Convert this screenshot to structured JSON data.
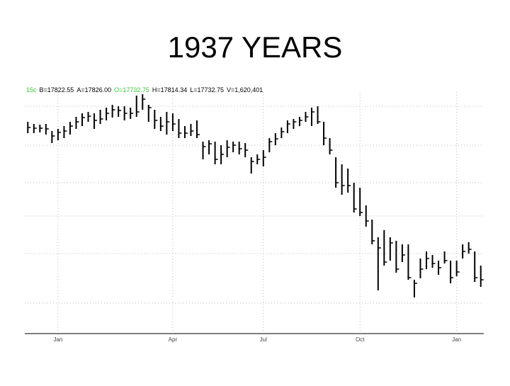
{
  "chart_data": {
    "type": "hlc",
    "title": "1937 YEARS",
    "info": [
      "15c",
      "B=17822.55",
      "A=17826.00",
      "O=17732.75",
      "H=17814.34",
      "L=17732.75",
      "V=1,620,401"
    ],
    "categories": [
      null,
      null,
      null,
      null,
      null,
      "Jan",
      null,
      null,
      null,
      null,
      null,
      null,
      null,
      null,
      null,
      null,
      null,
      null,
      null,
      null,
      null,
      null,
      null,
      null,
      "Apr",
      null,
      null,
      null,
      null,
      null,
      null,
      null,
      null,
      null,
      null,
      null,
      null,
      null,
      null,
      "Jul",
      null,
      null,
      null,
      null,
      null,
      null,
      null,
      null,
      null,
      null,
      null,
      null,
      null,
      null,
      null,
      "Oct",
      null,
      null,
      null,
      null,
      null,
      null,
      null,
      null,
      null,
      null,
      null,
      null,
      null,
      null,
      null,
      "Jan",
      null,
      null,
      null,
      null
    ],
    "high": [
      298,
      295,
      294,
      295,
      285,
      288,
      292,
      298,
      305,
      310,
      312,
      310,
      315,
      318,
      322,
      320,
      320,
      318,
      335,
      337,
      322,
      315,
      305,
      312,
      310,
      302,
      292,
      295,
      300,
      270,
      272,
      270,
      265,
      272,
      270,
      270,
      268,
      248,
      252,
      258,
      275,
      282,
      290,
      300,
      302,
      305,
      312,
      318,
      320,
      298,
      275,
      248,
      238,
      232,
      212,
      205,
      180,
      160,
      135,
      145,
      135,
      130,
      125,
      125,
      75,
      105,
      115,
      110,
      102,
      115,
      102,
      102,
      125,
      128,
      115,
      95
    ],
    "low": [
      282,
      282,
      283,
      280,
      268,
      272,
      275,
      280,
      288,
      292,
      298,
      288,
      295,
      300,
      304,
      305,
      300,
      302,
      305,
      315,
      298,
      288,
      285,
      280,
      285,
      275,
      275,
      278,
      275,
      245,
      252,
      238,
      238,
      248,
      255,
      252,
      248,
      225,
      238,
      235,
      255,
      265,
      275,
      282,
      288,
      292,
      298,
      292,
      295,
      265,
      252,
      205,
      195,
      198,
      170,
      165,
      150,
      125,
      60,
      95,
      102,
      85,
      100,
      75,
      50,
      77,
      90,
      92,
      82,
      98,
      70,
      80,
      105,
      112,
      72,
      65
    ],
    "close": [
      290,
      289,
      289,
      288,
      278,
      283,
      285,
      292,
      298,
      304,
      306,
      300,
      302,
      310,
      315,
      314,
      310,
      310,
      312,
      330,
      318,
      300,
      292,
      298,
      295,
      282,
      282,
      285,
      280,
      263,
      267,
      245,
      252,
      262,
      265,
      260,
      258,
      242,
      245,
      248,
      270,
      274,
      284,
      295,
      298,
      300,
      305,
      312,
      298,
      275,
      258,
      212,
      208,
      208,
      175,
      170,
      158,
      130,
      120,
      100,
      127,
      90,
      110,
      78,
      70,
      90,
      105,
      98,
      92,
      102,
      78,
      86,
      115,
      118,
      78,
      75
    ],
    "color": "#000000",
    "ylim": [
      0,
      340
    ],
    "grid": true
  }
}
